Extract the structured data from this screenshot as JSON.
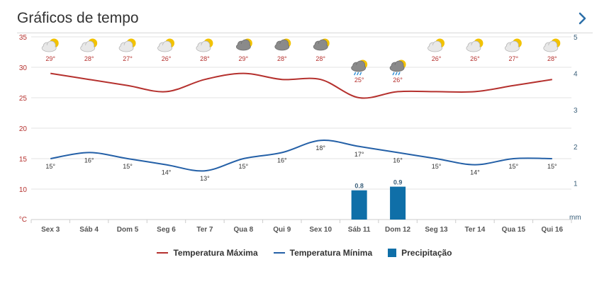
{
  "header": {
    "title": "Gráficos de tempo",
    "next_icon": "chevron-right-icon"
  },
  "colors": {
    "max": "#b5312e",
    "min": "#2460a7",
    "precip": "#0f6fa8",
    "axis_right": "#3a5f7a",
    "axis_left": "#b5312e"
  },
  "legend": {
    "max_label": "Temperatura Máxima",
    "min_label": "Temperatura Mínima",
    "precip_label": "Precipitação"
  },
  "chart_data": {
    "type": "line",
    "categories": [
      "Sex 3",
      "Sáb 4",
      "Dom 5",
      "Seg 6",
      "Ter 7",
      "Qua 8",
      "Qui 9",
      "Sex 10",
      "Sáb 11",
      "Dom 12",
      "Seg 13",
      "Ter 14",
      "Qua 15",
      "Qui 16"
    ],
    "series": [
      {
        "name": "Temperatura Máxima",
        "type": "line",
        "axis": "left",
        "values": [
          29,
          28,
          27,
          26,
          28,
          29,
          28,
          28,
          25,
          26,
          26,
          26,
          27,
          28
        ],
        "labels": [
          "29°",
          "28°",
          "27°",
          "26°",
          "28°",
          "29°",
          "28°",
          "28°",
          "25°",
          "26°",
          "26°",
          "26°",
          "27°",
          "28°"
        ]
      },
      {
        "name": "Temperatura Mínima",
        "type": "line",
        "axis": "left",
        "values": [
          15,
          16,
          15,
          14,
          13,
          15,
          16,
          18,
          17,
          16,
          15,
          14,
          15,
          15
        ],
        "labels": [
          "15°",
          "16°",
          "15°",
          "14°",
          "13°",
          "15°",
          "16°",
          "18°",
          "17°",
          "16°",
          "15°",
          "14°",
          "15°",
          "15°"
        ]
      },
      {
        "name": "Precipitação",
        "type": "bar",
        "axis": "right",
        "values": [
          0,
          0,
          0,
          0,
          0,
          0,
          0,
          0,
          0.8,
          0.9,
          0,
          0,
          0,
          0
        ],
        "labels": [
          "",
          "",
          "",
          "",
          "",
          "",
          "",
          "",
          "0.8",
          "0.9",
          "",
          "",
          "",
          ""
        ]
      }
    ],
    "left_axis": {
      "unit": "°C",
      "ticks": [
        "35",
        "30",
        "25",
        "20",
        "15",
        "10"
      ],
      "range": [
        5,
        35
      ]
    },
    "right_axis": {
      "unit": "mm",
      "ticks": [
        "5",
        "4",
        "3",
        "2",
        "1"
      ],
      "range": [
        0,
        5
      ]
    },
    "weather_icons": [
      "partly-cloudy",
      "partly-cloudy",
      "partly-cloudy",
      "partly-cloudy",
      "partly-cloudy",
      "cloudy",
      "cloudy",
      "cloudy",
      "rain",
      "rain",
      "partly-cloudy",
      "partly-cloudy",
      "partly-cloudy",
      "partly-cloudy"
    ],
    "grid": true,
    "legend_position": "bottom"
  }
}
